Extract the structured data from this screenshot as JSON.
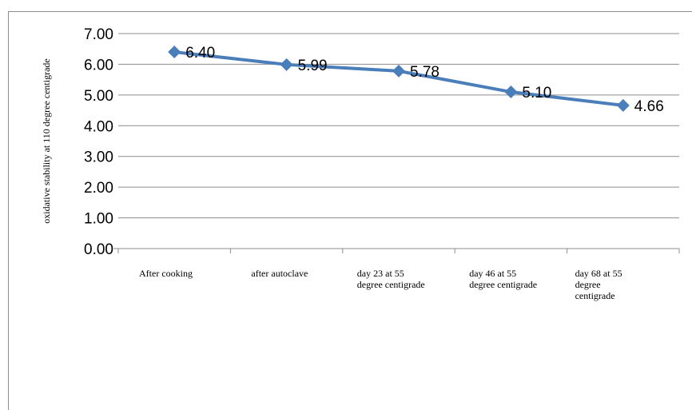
{
  "chart_data": {
    "type": "line",
    "title": "",
    "xlabel": "",
    "ylabel": "oxidative stability at 110 degree  centigrade",
    "categories": [
      "After cooking",
      "after autoclave",
      "day 23 at 55 degree centigrade",
      "day 46 at 55 degree centigrade",
      "day 68 at 55 degree centigrade"
    ],
    "category_lines": [
      [
        "After cooking"
      ],
      [
        "after autoclave"
      ],
      [
        "day 23 at 55",
        "degree centigrade"
      ],
      [
        "day 46 at 55",
        "degree centigrade"
      ],
      [
        "day 68 at 55",
        "degree",
        "centigrade"
      ]
    ],
    "series": [
      {
        "values": [
          6.4,
          5.99,
          5.78,
          5.1,
          4.66
        ],
        "color": "#4a7ebb"
      }
    ],
    "data_labels": [
      "6.40",
      "5.99",
      "5.78",
      "5.10",
      "4.66"
    ],
    "yticks": [
      "0.00",
      "1.00",
      "2.00",
      "3.00",
      "4.00",
      "5.00",
      "6.00",
      "7.00"
    ],
    "ylim": [
      0,
      7
    ],
    "grid": true,
    "legend": "none",
    "marker": "diamond"
  }
}
